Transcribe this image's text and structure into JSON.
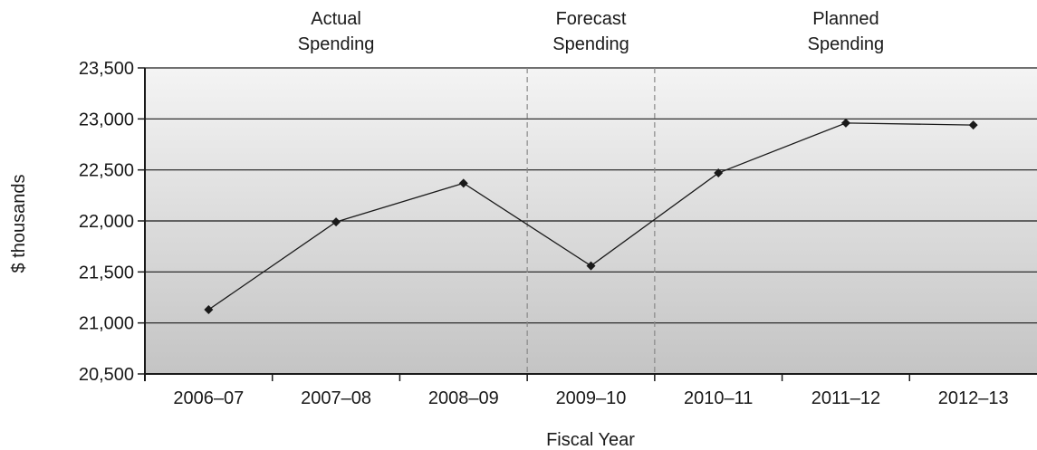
{
  "chart_data": {
    "type": "line",
    "title": "",
    "xlabel": "Fiscal Year",
    "ylabel": "$ thousands",
    "categories": [
      "2006–07",
      "2007–08",
      "2008–09",
      "2009–10",
      "2010–11",
      "2011–12",
      "2012–13"
    ],
    "series": [
      {
        "values": [
          21130,
          21990,
          22370,
          21560,
          22470,
          22960,
          22940
        ]
      }
    ],
    "ylim": [
      20500,
      23500
    ],
    "yticks": [
      20500,
      21000,
      21500,
      22000,
      22500,
      23000,
      23500
    ],
    "ytick_labels": [
      "20,500",
      "21,000",
      "21,500",
      "22,000",
      "22,500",
      "23,000",
      "23,500"
    ],
    "grid": true,
    "period_labels": [
      {
        "line1": "Actual",
        "line2": "Spending"
      },
      {
        "line1": "Forecast",
        "line2": "Spending"
      },
      {
        "line1": "Planned",
        "line2": "Spending"
      }
    ],
    "colors": {
      "line": "#1a1a1a",
      "marker": "#1a1a1a",
      "gridline": "#1a1a1a",
      "divider": "#888888",
      "plot_bg_top": "#f4f4f4",
      "plot_bg_bottom": "#c4c4c4"
    }
  }
}
